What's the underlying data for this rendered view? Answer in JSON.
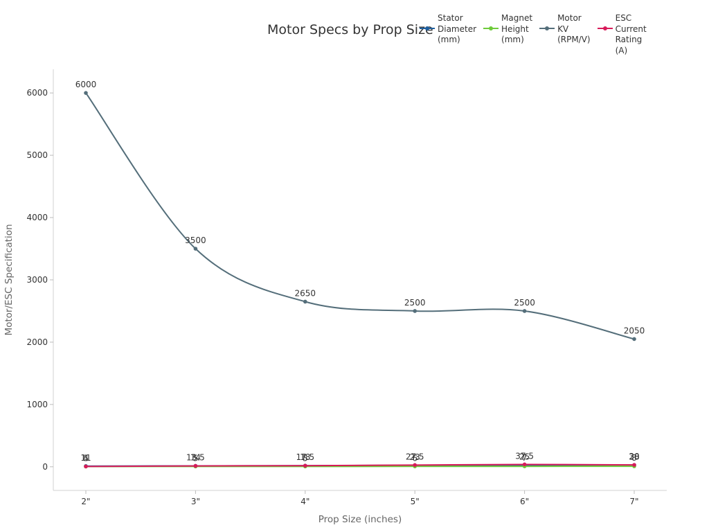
{
  "chart_data": {
    "type": "line",
    "title": "Motor Specs by Prop Size",
    "xlabel": "Prop Size (inches)",
    "ylabel": "Motor/ESC Specification",
    "categories": [
      "2\"",
      "3\"",
      "4\"",
      "5\"",
      "6\"",
      "7\""
    ],
    "ylim": [
      -380,
      6380
    ],
    "yticks": [
      0,
      1000,
      2000,
      3000,
      4000,
      5000,
      6000
    ],
    "grid": false,
    "legend_position": "top-right",
    "series": [
      {
        "name": "Stator Diameter (mm)",
        "legend": "Stator\nDiameter\n(mm)",
        "color": "#1f5f9e",
        "values": [
          11,
          14,
          18,
          23,
          25,
          28
        ],
        "labels": [
          "11",
          "14",
          "18",
          "23",
          "25",
          "28"
        ]
      },
      {
        "name": "Magnet Height (mm)",
        "legend": "Magnet\nHeight\n(mm)",
        "color": "#6ecb3a",
        "values": [
          4,
          5,
          5,
          6,
          7,
          8
        ],
        "labels": [
          "4",
          "5",
          "5",
          "6",
          "7",
          "8"
        ]
      },
      {
        "name": "Motor KV (RPM/V)",
        "legend": "Motor\nKV\n(RPM/V)",
        "color": "#546e7a",
        "values": [
          6000,
          3500,
          2650,
          2500,
          2500,
          2050
        ],
        "labels": [
          "6000",
          "3500",
          "2650",
          "2500",
          "2500",
          "2050"
        ]
      },
      {
        "name": "ESC Current Rating (A)",
        "legend": "ESC\nCurrent\nRating\n(A)",
        "color": "#d81b5a",
        "values": [
          5,
          13.5,
          17.5,
          27.5,
          37.5,
          30
        ],
        "labels": [
          "5",
          "13.5",
          "17.5",
          "27.5",
          "37.5",
          "30"
        ]
      }
    ]
  }
}
